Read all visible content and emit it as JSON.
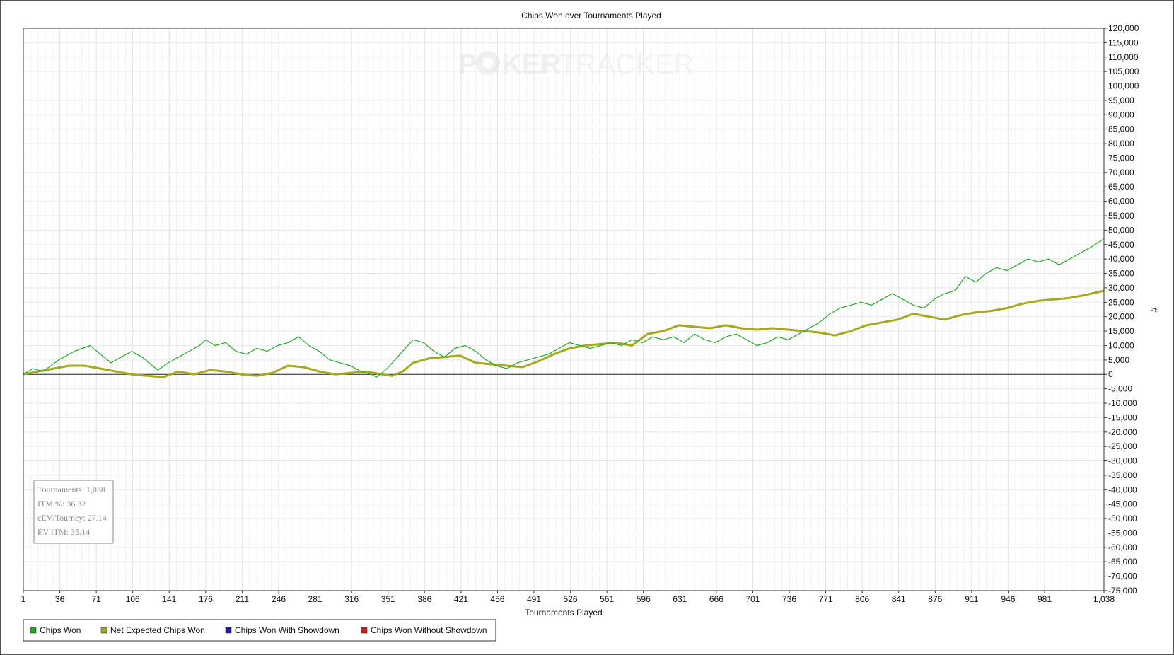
{
  "chart_data": {
    "type": "line",
    "title": "Chips Won over Tournaments Played",
    "xlabel": "Tournaments Played",
    "ylabel": "#",
    "xlim": [
      1,
      1038
    ],
    "ylim": [
      -75000,
      120000
    ],
    "y_step": 5000,
    "x_ticks": [
      1,
      36,
      71,
      106,
      141,
      176,
      211,
      246,
      281,
      316,
      351,
      386,
      421,
      456,
      491,
      526,
      561,
      596,
      631,
      666,
      701,
      736,
      771,
      806,
      841,
      876,
      911,
      946,
      981,
      1038
    ],
    "x_tick_labels": [
      "1",
      "36",
      "71",
      "106",
      "141",
      "176",
      "211",
      "246",
      "281",
      "316",
      "351",
      "386",
      "421",
      "456",
      "491",
      "526",
      "561",
      "596",
      "631",
      "666",
      "701",
      "736",
      "771",
      "806",
      "841",
      "876",
      "911",
      "946",
      "981",
      "1,038"
    ],
    "grid": true,
    "legend_position": "bottom-left",
    "series": [
      {
        "name": "Chips Won",
        "color": "#22aa22",
        "x": [
          1,
          10,
          20,
          35,
          50,
          65,
          75,
          85,
          95,
          105,
          115,
          125,
          130,
          140,
          150,
          160,
          170,
          176,
          185,
          195,
          205,
          215,
          225,
          235,
          245,
          255,
          265,
          275,
          285,
          295,
          305,
          315,
          325,
          335,
          340,
          350,
          360,
          370,
          375,
          385,
          395,
          405,
          415,
          425,
          435,
          445,
          455,
          465,
          475,
          485,
          495,
          505,
          515,
          525,
          535,
          545,
          555,
          565,
          575,
          585,
          595,
          605,
          615,
          625,
          635,
          645,
          655,
          665,
          675,
          685,
          695,
          705,
          715,
          725,
          735,
          745,
          755,
          765,
          775,
          785,
          795,
          805,
          815,
          825,
          835,
          845,
          855,
          865,
          875,
          885,
          895,
          905,
          915,
          925,
          935,
          945,
          955,
          965,
          975,
          985,
          995,
          1005,
          1015,
          1025,
          1038
        ],
        "y": [
          0,
          2000,
          1000,
          5000,
          8000,
          10000,
          7000,
          4000,
          6000,
          8000,
          6000,
          3000,
          1500,
          4000,
          6000,
          8000,
          10000,
          12000,
          10000,
          11000,
          8000,
          7000,
          9000,
          8000,
          10000,
          11000,
          13000,
          10000,
          8000,
          5000,
          4000,
          3000,
          1000,
          0,
          -1000,
          2000,
          6000,
          10000,
          12000,
          11000,
          8000,
          6000,
          9000,
          10000,
          8000,
          5000,
          3000,
          2000,
          4000,
          5000,
          6000,
          7000,
          9000,
          11000,
          10000,
          9000,
          10000,
          11000,
          10000,
          12000,
          11000,
          13000,
          12000,
          13000,
          11000,
          14000,
          12000,
          11000,
          13000,
          14000,
          12000,
          10000,
          11000,
          13000,
          12000,
          14000,
          16000,
          18000,
          21000,
          23000,
          24000,
          25000,
          24000,
          26000,
          28000,
          26000,
          24000,
          23000,
          26000,
          28000,
          29000,
          34000,
          32000,
          35000,
          37000,
          36000,
          38000,
          40000,
          39000,
          40000,
          38000,
          40000,
          42000,
          44000,
          47000
        ]
      },
      {
        "name": "Net Expected Chips Won",
        "color": "#a8a81e",
        "x": [
          1,
          15,
          30,
          45,
          60,
          75,
          90,
          105,
          120,
          135,
          150,
          165,
          180,
          195,
          210,
          225,
          240,
          255,
          270,
          285,
          300,
          315,
          330,
          345,
          355,
          365,
          375,
          390,
          405,
          420,
          435,
          450,
          465,
          480,
          495,
          510,
          525,
          540,
          555,
          570,
          585,
          600,
          615,
          630,
          645,
          660,
          675,
          690,
          705,
          720,
          735,
          750,
          765,
          780,
          795,
          810,
          825,
          840,
          855,
          870,
          885,
          900,
          915,
          930,
          945,
          960,
          975,
          990,
          1005,
          1020,
          1038
        ],
        "y": [
          0,
          1000,
          2000,
          3000,
          3000,
          2000,
          1000,
          0,
          -500,
          -1000,
          1000,
          0,
          1500,
          1000,
          0,
          -500,
          500,
          3000,
          2500,
          1000,
          0,
          500,
          1000,
          0,
          -500,
          1000,
          4000,
          5500,
          6000,
          6500,
          4000,
          3500,
          3000,
          2500,
          4500,
          7000,
          9000,
          10000,
          10500,
          11000,
          10000,
          14000,
          15000,
          17000,
          16500,
          16000,
          17000,
          16000,
          15500,
          16000,
          15500,
          15000,
          14500,
          13500,
          15000,
          17000,
          18000,
          19000,
          21000,
          20000,
          19000,
          20500,
          21500,
          22000,
          23000,
          24500,
          25500,
          26000,
          26500,
          27500,
          29000
        ]
      },
      {
        "name": "Chips Won With Showdown",
        "color": "#1a1aa0",
        "x": [],
        "y": []
      },
      {
        "name": "Chips Won Without Showdown",
        "color": "#cc1a1a",
        "x": [],
        "y": []
      }
    ]
  },
  "stats": {
    "tournaments": "Tournaments: 1,038",
    "itm": "ITM %: 36.32",
    "cev": "cEV/Tourney: 27.14",
    "ev_itm": "EV ITM: 35.14"
  },
  "watermark": {
    "part1": "P",
    "part2": "KER",
    "part3": "TRACKER"
  }
}
